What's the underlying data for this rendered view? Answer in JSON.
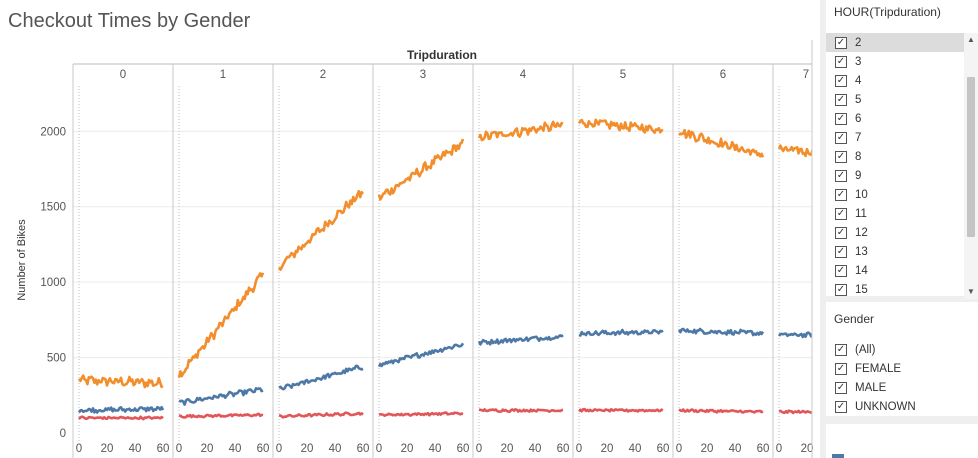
{
  "title": "Checkout Times by Gender",
  "chart_data": {
    "type": "line",
    "title": "Checkout Times by Gender",
    "column_header": "Tripduration",
    "panels": [
      "0",
      "1",
      "2",
      "3",
      "4",
      "5",
      "6",
      "7"
    ],
    "ylabel": "Number of Bikes",
    "y_ticks": [
      "0",
      "500",
      "1000",
      "1500",
      "2000"
    ],
    "x_ticks": [
      "0",
      "20",
      "40",
      "60"
    ],
    "ylim": [
      0,
      2300
    ],
    "xlim": [
      0,
      60
    ],
    "grid": true,
    "series": [
      {
        "color": "#f28e2b",
        "levels": [
          [
            350,
            330
          ],
          [
            380,
            1050
          ],
          [
            1100,
            1600
          ],
          [
            1560,
            1920
          ],
          [
            1960,
            2040
          ],
          [
            2060,
            2010
          ],
          [
            2000,
            1840
          ],
          [
            1880,
            1830
          ]
        ]
      },
      {
        "color": "#4e79a7",
        "levels": [
          [
            150,
            160
          ],
          [
            200,
            290
          ],
          [
            290,
            440
          ],
          [
            450,
            590
          ],
          [
            600,
            640
          ],
          [
            660,
            670
          ],
          [
            680,
            660
          ],
          [
            650,
            650
          ]
        ]
      },
      {
        "color": "#e15759",
        "levels": [
          [
            100,
            100
          ],
          [
            110,
            120
          ],
          [
            110,
            130
          ],
          [
            120,
            130
          ],
          [
            150,
            150
          ],
          [
            150,
            150
          ],
          [
            150,
            140
          ],
          [
            140,
            140
          ]
        ]
      }
    ]
  },
  "hour_filter": {
    "title": "HOUR(Tripduration)",
    "items": [
      "2",
      "3",
      "4",
      "5",
      "6",
      "7",
      "8",
      "9",
      "10",
      "11",
      "12",
      "13",
      "14",
      "15"
    ],
    "selected_index": 0,
    "scroll_up": "▲",
    "scroll_down": "▼"
  },
  "gender_filter": {
    "title": "Gender",
    "items": [
      "(All)",
      "FEMALE",
      "MALE",
      "UNKNOWN"
    ]
  },
  "check_glyph": "✓"
}
